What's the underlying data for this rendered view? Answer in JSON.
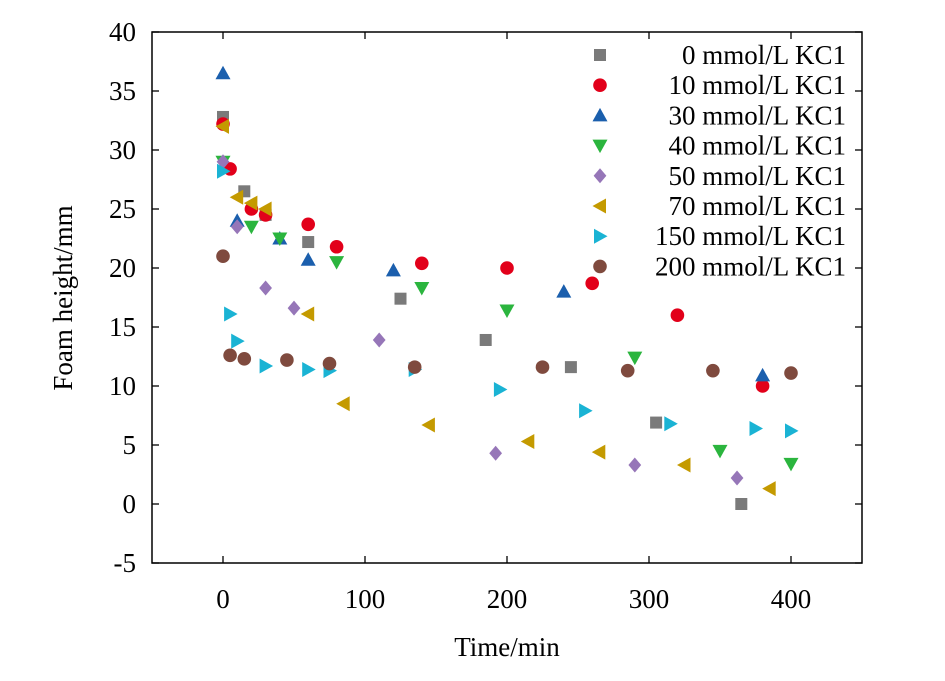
{
  "chart_data": {
    "type": "scatter",
    "xlabel": "Time/min",
    "ylabel": "Foam height/mm",
    "xlim": [
      -50,
      450
    ],
    "ylim": [
      -5,
      40
    ],
    "xticks": [
      0,
      100,
      200,
      300,
      400
    ],
    "yticks": [
      -5,
      0,
      5,
      10,
      15,
      20,
      25,
      30,
      35,
      40
    ],
    "xtick_labels": [
      "0",
      "100",
      "200",
      "300",
      "400"
    ],
    "ytick_labels": [
      "-5",
      "0",
      "5",
      "10",
      "15",
      "20",
      "25",
      "30",
      "35",
      "40"
    ],
    "grid": false,
    "legend_position": "top-right",
    "series": [
      {
        "name": "0 mmol/L KC1",
        "marker": "square",
        "color": "#7a7a7a",
        "points": [
          [
            0,
            32.8
          ],
          [
            15,
            26.5
          ],
          [
            30,
            24.5
          ],
          [
            60,
            22.2
          ],
          [
            125,
            17.4
          ],
          [
            185,
            13.9
          ],
          [
            245,
            11.6
          ],
          [
            305,
            6.9
          ],
          [
            365,
            0.0
          ]
        ]
      },
      {
        "name": "10 mmol/L KC1",
        "marker": "circle",
        "color": "#e2001a",
        "points": [
          [
            0,
            32.2
          ],
          [
            5,
            28.4
          ],
          [
            20,
            25.0
          ],
          [
            30,
            24.5
          ],
          [
            60,
            23.7
          ],
          [
            80,
            21.8
          ],
          [
            140,
            20.4
          ],
          [
            200,
            20.0
          ],
          [
            260,
            18.7
          ],
          [
            320,
            16.0
          ],
          [
            380,
            10.0
          ]
        ]
      },
      {
        "name": "30 mmol/L KC1",
        "marker": "triangle-up",
        "color": "#1b5fad",
        "points": [
          [
            0,
            36.5
          ],
          [
            10,
            24.0
          ],
          [
            40,
            22.5
          ],
          [
            60,
            20.7
          ],
          [
            120,
            19.8
          ],
          [
            240,
            18.0
          ],
          [
            380,
            10.9
          ]
        ]
      },
      {
        "name": "40 mmol/L KC1",
        "marker": "triangle-down",
        "color": "#2bb53e",
        "points": [
          [
            0,
            29.0
          ],
          [
            20,
            23.5
          ],
          [
            40,
            22.5
          ],
          [
            80,
            20.5
          ],
          [
            140,
            18.3
          ],
          [
            200,
            16.4
          ],
          [
            290,
            12.4
          ],
          [
            350,
            4.5
          ],
          [
            400,
            3.4
          ]
        ]
      },
      {
        "name": "50 mmol/L KC1",
        "marker": "diamond",
        "color": "#9676b8",
        "points": [
          [
            0,
            29.0
          ],
          [
            10,
            23.5
          ],
          [
            30,
            18.3
          ],
          [
            50,
            16.6
          ],
          [
            110,
            13.9
          ],
          [
            192,
            4.3
          ],
          [
            290,
            3.3
          ],
          [
            362,
            2.2
          ]
        ]
      },
      {
        "name": "70 mmol/L KC1",
        "marker": "triangle-left",
        "color": "#c49a00",
        "points": [
          [
            0,
            32.0
          ],
          [
            10,
            26.0
          ],
          [
            20,
            25.5
          ],
          [
            30,
            25.0
          ],
          [
            60,
            16.1
          ],
          [
            85,
            8.5
          ],
          [
            145,
            6.7
          ],
          [
            215,
            5.3
          ],
          [
            265,
            4.4
          ],
          [
            325,
            3.3
          ],
          [
            385,
            1.3
          ]
        ]
      },
      {
        "name": "150 mmol/L KC1",
        "marker": "triangle-right",
        "color": "#1ab3d4",
        "points": [
          [
            0,
            28.2
          ],
          [
            5,
            16.1
          ],
          [
            10,
            13.8
          ],
          [
            30,
            11.7
          ],
          [
            60,
            11.4
          ],
          [
            75,
            11.3
          ],
          [
            135,
            11.4
          ],
          [
            195,
            9.7
          ],
          [
            255,
            7.9
          ],
          [
            315,
            6.8
          ],
          [
            375,
            6.4
          ],
          [
            400,
            6.2
          ]
        ]
      },
      {
        "name": "200 mmol/L KC1",
        "marker": "circle",
        "color": "#7f4a3e",
        "points": [
          [
            0,
            21.0
          ],
          [
            5,
            12.6
          ],
          [
            15,
            12.3
          ],
          [
            45,
            12.2
          ],
          [
            75,
            11.9
          ],
          [
            135,
            11.6
          ],
          [
            225,
            11.6
          ],
          [
            285,
            11.3
          ],
          [
            345,
            11.3
          ],
          [
            400,
            11.1
          ]
        ]
      }
    ]
  }
}
